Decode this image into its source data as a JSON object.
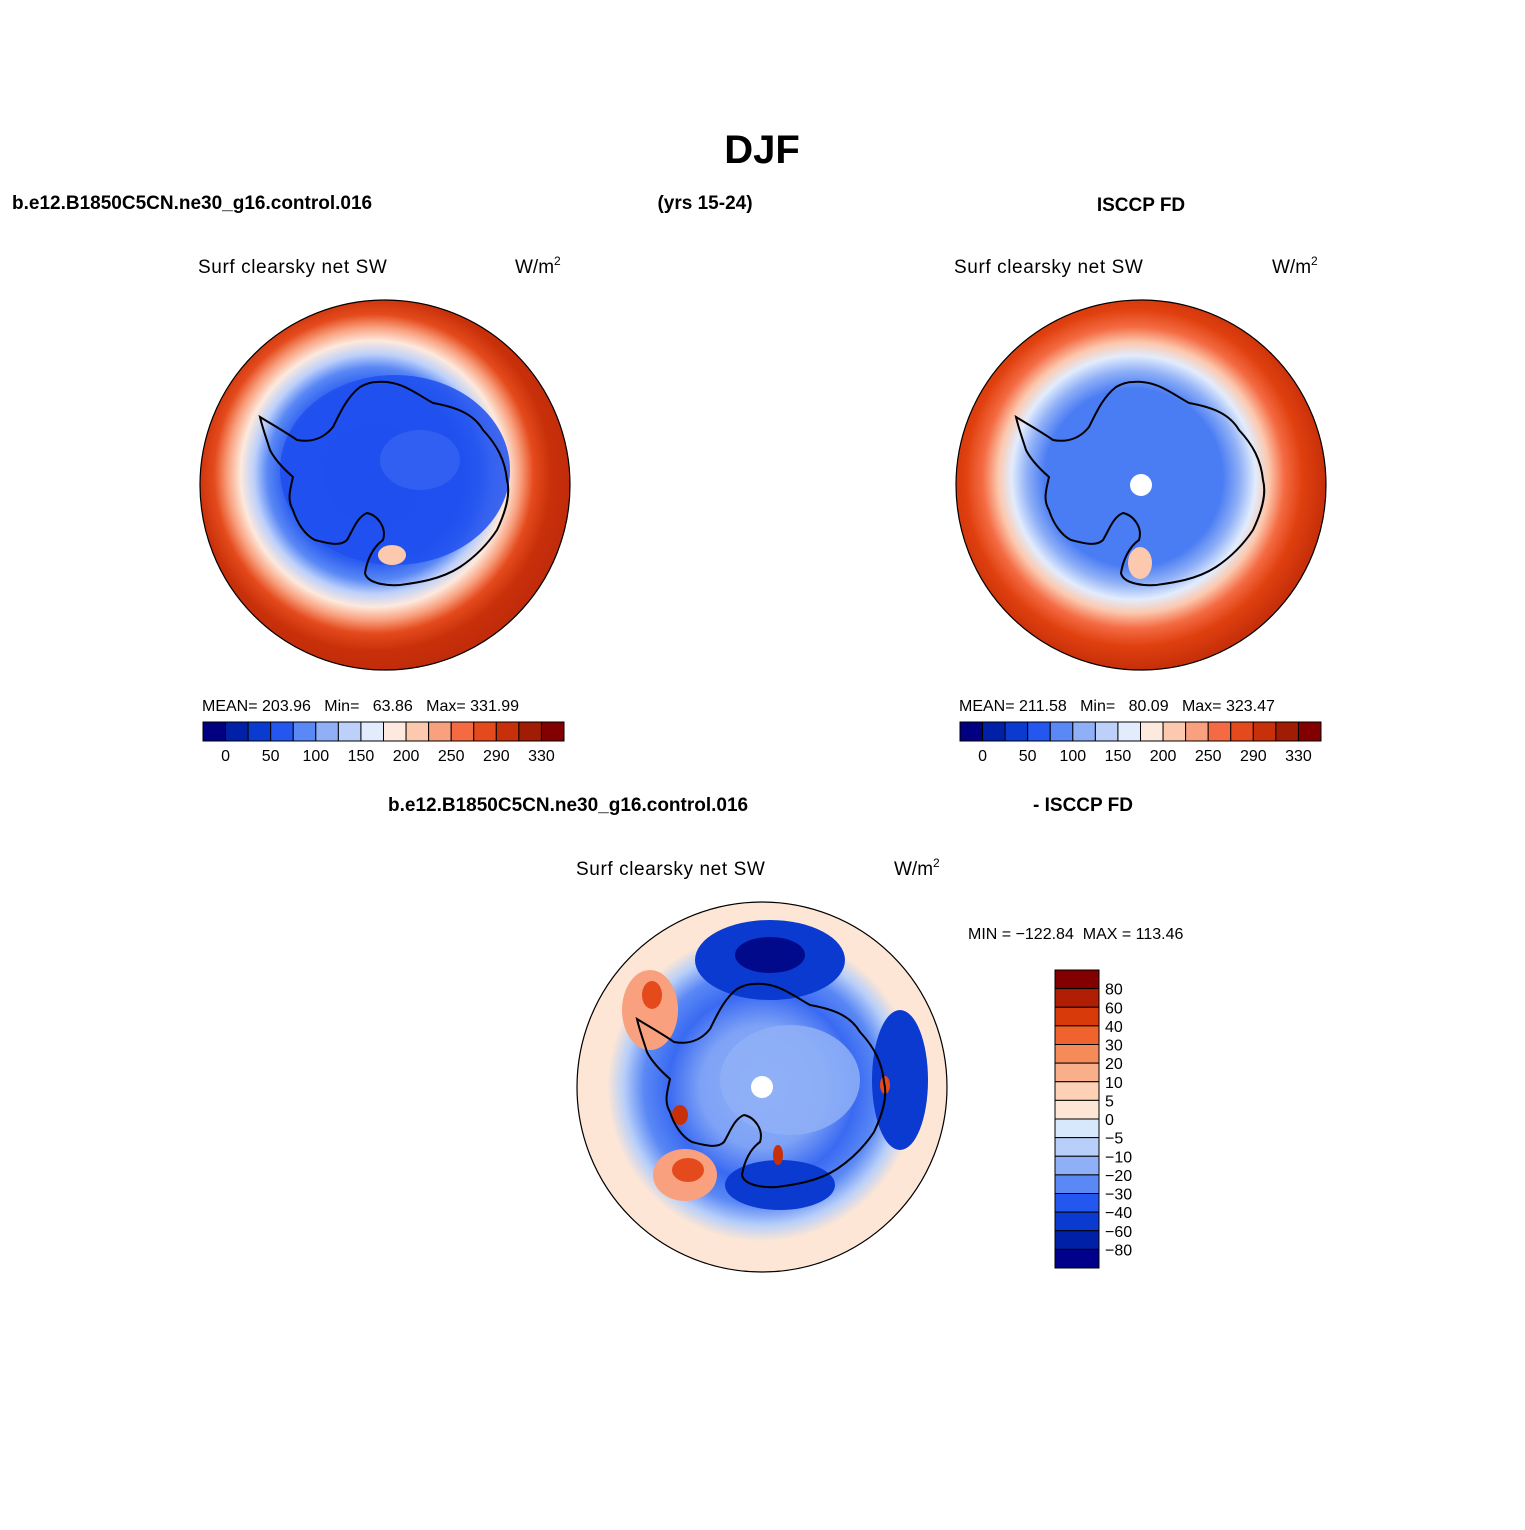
{
  "page": {
    "title": "DJF",
    "case_name": "b.e12.B1850C5CN.ne30_g16.control.016",
    "years": "(yrs 15-24)",
    "obs_name": "ISCCP FD",
    "diff_left": "b.e12.B1850C5CN.ne30_g16.control.016",
    "diff_right": "- ISCCP FD"
  },
  "panels": [
    {
      "name": "model",
      "variable": "Surf clearsky net SW",
      "units": "W/m",
      "units_exp": "2",
      "stats_text": "MEAN= 203.96   Min=   63.86   Max= 331.99",
      "mean": 203.96,
      "min": 63.86,
      "max": 331.99
    },
    {
      "name": "obs",
      "variable": "Surf clearsky net SW",
      "units": "W/m",
      "units_exp": "2",
      "stats_text": "MEAN= 211.58   Min=   80.09   Max= 323.47",
      "mean": 211.58,
      "min": 80.09,
      "max": 323.47
    },
    {
      "name": "diff",
      "variable": "Surf clearsky net SW",
      "units": "W/m",
      "units_exp": "2",
      "stats_text": "MIN = −122.84  MAX = 113.46",
      "min": -122.84,
      "max": 113.46
    }
  ],
  "colorbar_main": {
    "colors": [
      "#000080",
      "#0020a8",
      "#0a3ad0",
      "#2457f0",
      "#5a88f5",
      "#8fb0f7",
      "#bcd0fa",
      "#e2ecfd",
      "#fde9dd",
      "#fcc8ae",
      "#f9a07e",
      "#f46b43",
      "#e44a1c",
      "#c8300a",
      "#a01c04",
      "#820000"
    ],
    "labels": [
      "0",
      "50",
      "100",
      "150",
      "200",
      "250",
      "290",
      "330"
    ]
  },
  "colorbar_diff": {
    "colors": [
      "#820000",
      "#b01f04",
      "#d83a0a",
      "#f0622e",
      "#f68b5a",
      "#f9b08a",
      "#fcd1b6",
      "#fde6d5",
      "#d8e8fc",
      "#b8cff9",
      "#8fb0f7",
      "#5a88f5",
      "#2457f0",
      "#0a3ad0",
      "#0020a8",
      "#00008a"
    ],
    "labels": [
      "80",
      "60",
      "40",
      "30",
      "20",
      "10",
      "5",
      "0",
      "−5",
      "−10",
      "−20",
      "−30",
      "−40",
      "−60",
      "−80"
    ]
  }
}
